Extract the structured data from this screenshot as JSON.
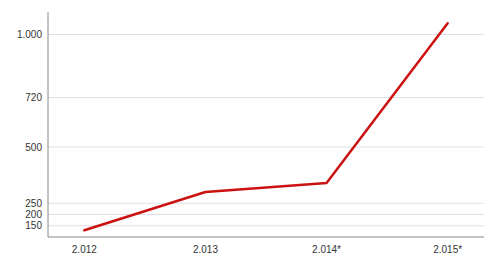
{
  "chart_data": {
    "type": "line",
    "categories": [
      "2.012",
      "2.013",
      "2.014*",
      "2.015*"
    ],
    "values": [
      130,
      300,
      340,
      1050
    ],
    "color": "#cc1111",
    "ylim": [
      100,
      1100
    ],
    "yticks": [
      150,
      200,
      250,
      500,
      720,
      {
        "value": 1000,
        "label": "1.000"
      }
    ],
    "grid": true
  }
}
